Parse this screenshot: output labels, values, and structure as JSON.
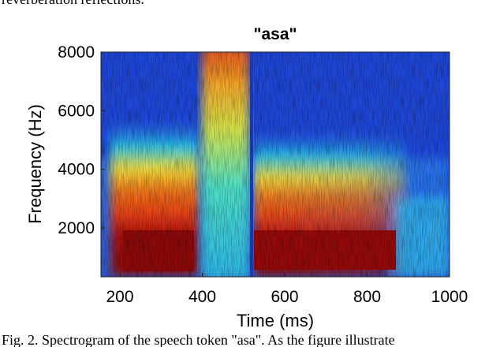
{
  "top_text": "reverberation reflections.",
  "chart_data": {
    "type": "spectrogram",
    "title": "\"asa\"",
    "x_label": "Time (ms)",
    "y_label": "Frequency (Hz)",
    "xlim": [
      154,
      1000
    ],
    "xticks": [
      200,
      400,
      600,
      800,
      1000
    ],
    "ylim": [
      333,
      8000
    ],
    "yticks": [
      2000,
      4000,
      6000,
      8000
    ]
  },
  "caption": "Fig. 2.  Spectrogram of the speech token \"asa\". As the figure illustrate"
}
